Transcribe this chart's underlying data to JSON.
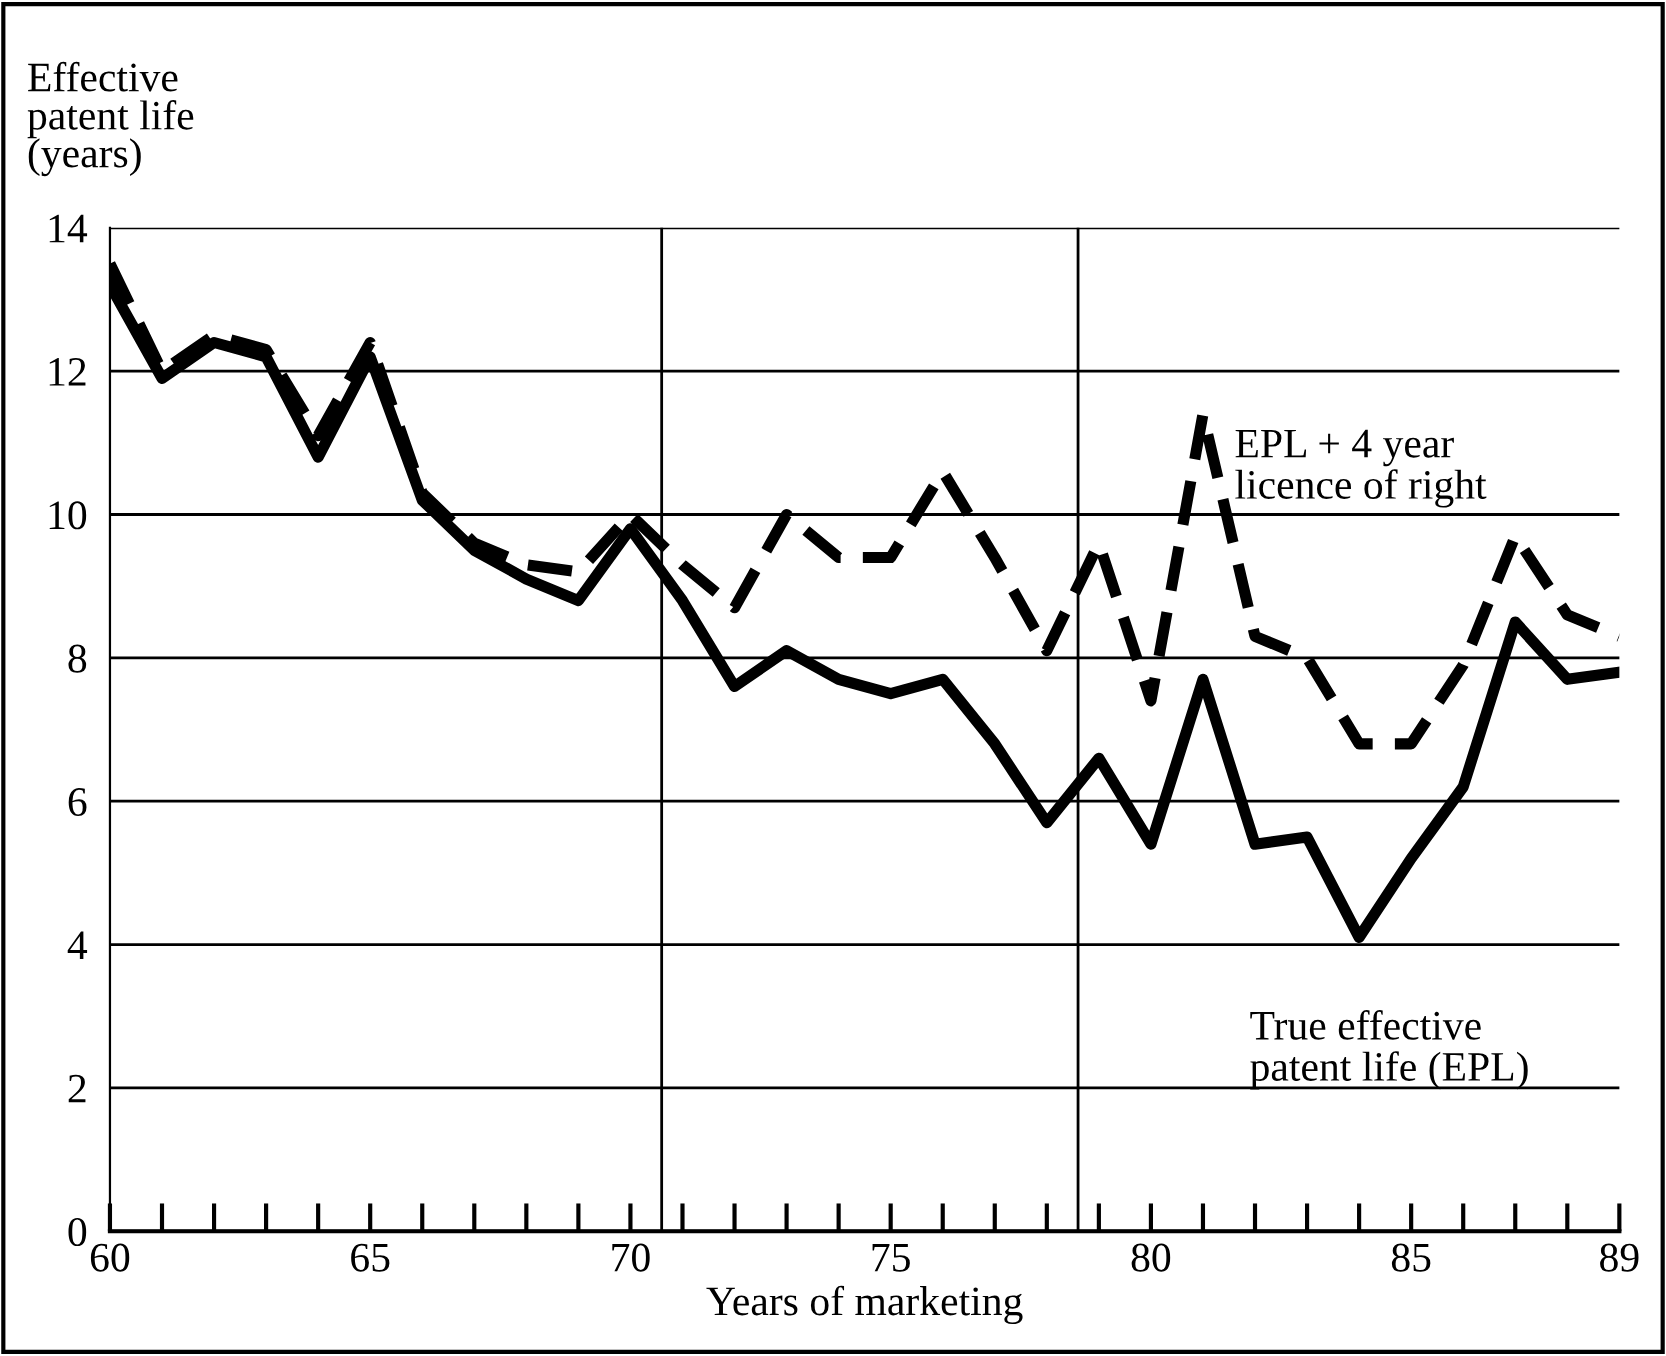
{
  "chart_data": {
    "type": "line",
    "ylabel": "Effective\npatent life\n(years)",
    "xlabel": "Years of marketing",
    "x": [
      60,
      61,
      62,
      63,
      64,
      65,
      66,
      67,
      68,
      69,
      70,
      71,
      72,
      73,
      74,
      75,
      76,
      77,
      78,
      79,
      80,
      81,
      82,
      83,
      84,
      85,
      86,
      87,
      88,
      89
    ],
    "series": [
      {
        "name": "True effective\npatent life (EPL)",
        "color": "#000000",
        "line_style": "solid",
        "values": [
          13.2,
          11.9,
          12.4,
          12.2,
          10.8,
          12.2,
          10.2,
          9.5,
          9.1,
          8.8,
          9.8,
          8.8,
          7.6,
          8.1,
          7.7,
          7.5,
          7.7,
          6.8,
          5.7,
          6.6,
          5.4,
          7.7,
          5.4,
          5.5,
          4.1,
          5.2,
          6.2,
          8.5,
          7.7,
          7.8
        ]
      },
      {
        "name": "EPL + 4 year\nlicence of right",
        "color": "#000000",
        "line_style": "dashed",
        "values": [
          13.5,
          12.0,
          12.5,
          12.3,
          11.1,
          12.4,
          10.3,
          9.6,
          9.3,
          9.2,
          10.0,
          9.3,
          8.7,
          10.0,
          9.4,
          9.4,
          10.6,
          9.4,
          8.1,
          9.6,
          7.4,
          11.4,
          8.3,
          8.0,
          6.8,
          6.8,
          7.9,
          9.7,
          8.6,
          8.3
        ]
      }
    ],
    "xlim": [
      60,
      89
    ],
    "ylim": [
      0,
      14
    ],
    "xticks": [
      60,
      {
        "value": 61,
        "label": null
      },
      {
        "value": 62,
        "label": null
      },
      {
        "value": 63,
        "label": null
      },
      {
        "value": 64,
        "label": null
      },
      65,
      {
        "value": 66,
        "label": null
      },
      {
        "value": 67,
        "label": null
      },
      {
        "value": 68,
        "label": null
      },
      {
        "value": 69,
        "label": null
      },
      70,
      {
        "value": 71,
        "label": null
      },
      {
        "value": 72,
        "label": null
      },
      {
        "value": 73,
        "label": null
      },
      {
        "value": 74,
        "label": null
      },
      75,
      {
        "value": 76,
        "label": null
      },
      {
        "value": 77,
        "label": null
      },
      {
        "value": 78,
        "label": null
      },
      {
        "value": 79,
        "label": null
      },
      80,
      {
        "value": 81,
        "label": null
      },
      {
        "value": 82,
        "label": null
      },
      {
        "value": 83,
        "label": null
      },
      {
        "value": 84,
        "label": null
      },
      85,
      {
        "value": 86,
        "label": null
      },
      {
        "value": 87,
        "label": null
      },
      {
        "value": 88,
        "label": null
      },
      89
    ],
    "yticks": [
      0,
      2,
      4,
      6,
      8,
      10,
      12,
      14
    ],
    "ref_lines": [
      {
        "axis": "x",
        "value": 70.6,
        "color": "#000000"
      },
      {
        "axis": "x",
        "value": 78.6,
        "color": "#000000"
      }
    ],
    "grid": "y",
    "legend": false
  }
}
